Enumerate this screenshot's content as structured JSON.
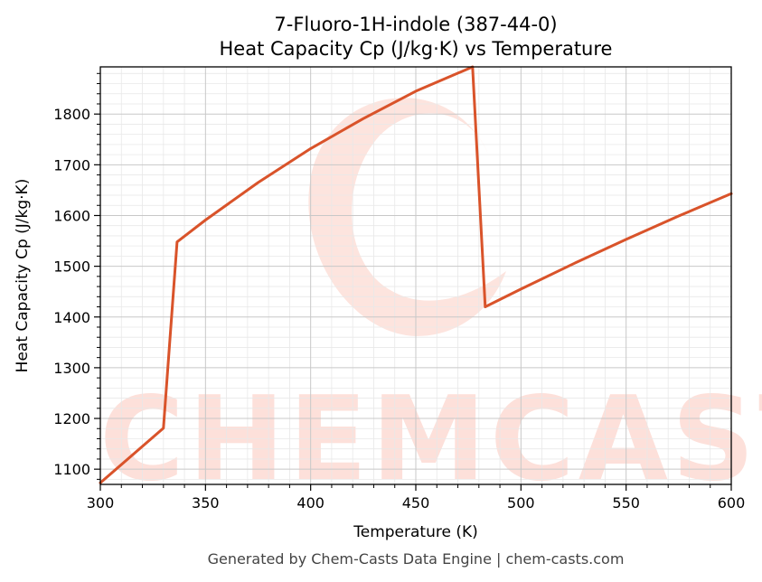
{
  "chart_data": {
    "type": "line",
    "title_line1": "7-Fluoro-1H-indole (387-44-0)",
    "title_line2": "Heat Capacity Cp (J/kg·K) vs Temperature",
    "xlabel": "Temperature (K)",
    "ylabel": "Heat Capacity Cp (J/kg·K)",
    "xlim": [
      300,
      600
    ],
    "ylim": [
      1070,
      1893
    ],
    "xticks": [
      300,
      350,
      400,
      450,
      500,
      550,
      600
    ],
    "yticks": [
      1100,
      1200,
      1300,
      1400,
      1500,
      1600,
      1700,
      1800
    ],
    "grid": true,
    "series": [
      {
        "color": "#d9532a",
        "x": [
          300,
          315,
          330,
          336.5,
          350,
          375,
          400,
          425,
          450,
          477,
          483,
          500,
          525,
          550,
          575,
          600
        ],
        "y": [
          1073,
          1127,
          1181,
          1548,
          1591,
          1665,
          1732,
          1791,
          1845,
          1893,
          1420,
          1455,
          1505,
          1553,
          1599,
          1643
        ]
      }
    ],
    "watermark": "CHEMCASTS"
  },
  "footer": "Generated by Chem-Casts Data Engine | chem-casts.com"
}
